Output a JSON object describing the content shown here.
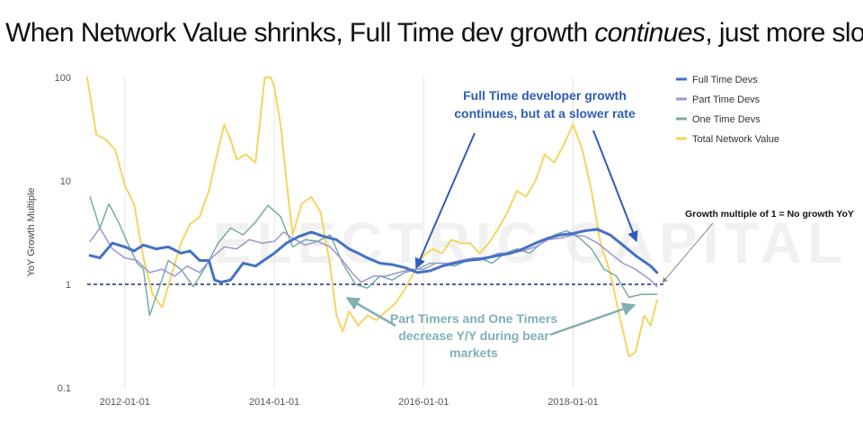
{
  "title": {
    "part1": "When Network Value shrinks, Full Time dev growth ",
    "emphasis": "continues",
    "part2": ", just more slowly"
  },
  "chart_data": {
    "type": "line",
    "ylabel": "YoY Growth Multiple",
    "yscale": "log",
    "ylim": [
      0.1,
      100
    ],
    "xlim": [
      "2011-07-01",
      "2019-03-01"
    ],
    "x_ticks": [
      "2012-01-01",
      "2014-01-01",
      "2016-01-01",
      "2018-01-01"
    ],
    "y_ticks": [
      {
        "value": 0.1,
        "label": "0.1"
      },
      {
        "value": 1,
        "label": "1"
      },
      {
        "value": 10,
        "label": "10"
      },
      {
        "value": 100,
        "label": "100"
      }
    ],
    "grid": "vertical",
    "legend": "top-right",
    "reference_line": {
      "value": 1,
      "style": "dashed",
      "color": "#1f2a80"
    },
    "series": [
      {
        "name": "Full Time Devs",
        "color": "#4472c4",
        "width": 3,
        "points": [
          [
            "2011-07-15",
            1.9
          ],
          [
            "2011-09-01",
            1.8
          ],
          [
            "2011-11-01",
            2.5
          ],
          [
            "2012-01-01",
            2.3
          ],
          [
            "2012-02-15",
            2.1
          ],
          [
            "2012-04-01",
            2.4
          ],
          [
            "2012-06-01",
            2.2
          ],
          [
            "2012-08-01",
            2.3
          ],
          [
            "2012-10-01",
            2.0
          ],
          [
            "2012-11-15",
            2.1
          ],
          [
            "2013-01-01",
            1.7
          ],
          [
            "2013-02-15",
            1.7
          ],
          [
            "2013-03-15",
            1.1
          ],
          [
            "2013-04-15",
            1.05
          ],
          [
            "2013-06-01",
            1.1
          ],
          [
            "2013-08-01",
            1.6
          ],
          [
            "2013-10-01",
            1.5
          ],
          [
            "2014-01-01",
            2.0
          ],
          [
            "2014-03-01",
            2.5
          ],
          [
            "2014-05-01",
            2.9
          ],
          [
            "2014-07-01",
            3.2
          ],
          [
            "2014-09-01",
            2.9
          ],
          [
            "2014-11-01",
            2.7
          ],
          [
            "2015-01-01",
            2.2
          ],
          [
            "2015-02-15",
            2.0
          ],
          [
            "2015-04-01",
            1.8
          ],
          [
            "2015-06-01",
            1.6
          ],
          [
            "2015-08-01",
            1.55
          ],
          [
            "2015-10-01",
            1.45
          ],
          [
            "2015-12-01",
            1.3
          ],
          [
            "2016-02-01",
            1.35
          ],
          [
            "2016-04-01",
            1.5
          ],
          [
            "2016-06-01",
            1.6
          ],
          [
            "2016-08-01",
            1.7
          ],
          [
            "2016-10-01",
            1.75
          ],
          [
            "2017-01-01",
            1.9
          ],
          [
            "2017-03-01",
            2.0
          ],
          [
            "2017-05-01",
            2.2
          ],
          [
            "2017-07-01",
            2.5
          ],
          [
            "2017-09-01",
            2.8
          ],
          [
            "2017-11-01",
            3.0
          ],
          [
            "2018-01-01",
            3.1
          ],
          [
            "2018-03-01",
            3.3
          ],
          [
            "2018-05-01",
            3.4
          ],
          [
            "2018-07-01",
            3.0
          ],
          [
            "2018-09-01",
            2.4
          ],
          [
            "2018-11-01",
            1.9
          ],
          [
            "2019-01-15",
            1.5
          ],
          [
            "2019-02-15",
            1.3
          ]
        ]
      },
      {
        "name": "Part Time Devs",
        "color": "#9e95cf",
        "width": 1.5,
        "points": [
          [
            "2011-07-15",
            2.6
          ],
          [
            "2011-09-01",
            3.5
          ],
          [
            "2011-11-01",
            2.2
          ],
          [
            "2012-01-01",
            1.8
          ],
          [
            "2012-03-01",
            1.7
          ],
          [
            "2012-05-01",
            1.3
          ],
          [
            "2012-07-01",
            1.4
          ],
          [
            "2012-09-01",
            1.2
          ],
          [
            "2012-11-01",
            1.5
          ],
          [
            "2013-01-01",
            1.3
          ],
          [
            "2013-03-01",
            1.8
          ],
          [
            "2013-05-01",
            2.3
          ],
          [
            "2013-07-01",
            2.2
          ],
          [
            "2013-09-01",
            2.7
          ],
          [
            "2013-11-01",
            2.5
          ],
          [
            "2014-01-01",
            2.6
          ],
          [
            "2014-02-15",
            3.2
          ],
          [
            "2014-04-01",
            2.8
          ],
          [
            "2014-06-01",
            2.4
          ],
          [
            "2014-08-01",
            2.6
          ],
          [
            "2014-10-01",
            2.3
          ],
          [
            "2014-12-01",
            1.7
          ],
          [
            "2015-01-15",
            1.3
          ],
          [
            "2015-03-01",
            1.05
          ],
          [
            "2015-05-01",
            1.2
          ],
          [
            "2015-07-01",
            1.2
          ],
          [
            "2015-09-01",
            1.3
          ],
          [
            "2015-11-01",
            1.4
          ],
          [
            "2016-01-01",
            1.4
          ],
          [
            "2016-03-01",
            1.6
          ],
          [
            "2016-05-01",
            1.6
          ],
          [
            "2016-07-01",
            1.7
          ],
          [
            "2016-09-01",
            1.8
          ],
          [
            "2016-11-01",
            1.8
          ],
          [
            "2017-01-01",
            2.0
          ],
          [
            "2017-03-01",
            2.0
          ],
          [
            "2017-05-01",
            2.1
          ],
          [
            "2017-07-01",
            2.3
          ],
          [
            "2017-09-01",
            2.7
          ],
          [
            "2017-11-01",
            2.8
          ],
          [
            "2018-01-01",
            3.0
          ],
          [
            "2018-03-01",
            2.9
          ],
          [
            "2018-05-01",
            2.5
          ],
          [
            "2018-07-01",
            2.0
          ],
          [
            "2018-09-01",
            1.6
          ],
          [
            "2018-11-01",
            1.4
          ],
          [
            "2019-01-15",
            1.1
          ],
          [
            "2019-02-15",
            0.95
          ]
        ]
      },
      {
        "name": "One Time Devs",
        "color": "#76aba5",
        "width": 1.5,
        "points": [
          [
            "2011-07-15",
            7.0
          ],
          [
            "2011-09-01",
            3.5
          ],
          [
            "2011-10-15",
            6.0
          ],
          [
            "2011-12-01",
            4.0
          ],
          [
            "2012-01-15",
            2.5
          ],
          [
            "2012-03-01",
            1.6
          ],
          [
            "2012-04-01",
            1.4
          ],
          [
            "2012-05-01",
            0.5
          ],
          [
            "2012-06-15",
            0.9
          ],
          [
            "2012-08-01",
            1.7
          ],
          [
            "2012-10-01",
            1.4
          ],
          [
            "2012-12-01",
            0.95
          ],
          [
            "2013-02-01",
            1.5
          ],
          [
            "2013-04-01",
            2.5
          ],
          [
            "2013-06-01",
            3.5
          ],
          [
            "2013-08-01",
            3.0
          ],
          [
            "2013-10-01",
            4.0
          ],
          [
            "2013-12-01",
            5.8
          ],
          [
            "2014-02-01",
            4.5
          ],
          [
            "2014-04-01",
            2.3
          ],
          [
            "2014-06-01",
            2.7
          ],
          [
            "2014-08-01",
            2.6
          ],
          [
            "2014-10-01",
            3.0
          ],
          [
            "2014-12-01",
            1.6
          ],
          [
            "2015-02-01",
            1.0
          ],
          [
            "2015-04-01",
            0.92
          ],
          [
            "2015-06-01",
            1.2
          ],
          [
            "2015-08-01",
            1.1
          ],
          [
            "2015-10-01",
            1.3
          ],
          [
            "2015-12-01",
            1.4
          ],
          [
            "2016-02-01",
            1.6
          ],
          [
            "2016-04-01",
            1.6
          ],
          [
            "2016-06-01",
            1.5
          ],
          [
            "2016-08-01",
            1.7
          ],
          [
            "2016-10-01",
            1.8
          ],
          [
            "2016-12-01",
            1.6
          ],
          [
            "2017-02-01",
            2.0
          ],
          [
            "2017-04-01",
            2.2
          ],
          [
            "2017-06-01",
            2.0
          ],
          [
            "2017-08-01",
            2.5
          ],
          [
            "2017-10-01",
            3.0
          ],
          [
            "2017-12-01",
            3.3
          ],
          [
            "2018-02-01",
            2.8
          ],
          [
            "2018-04-01",
            2.2
          ],
          [
            "2018-06-01",
            1.4
          ],
          [
            "2018-08-01",
            1.2
          ],
          [
            "2018-10-01",
            0.75
          ],
          [
            "2018-12-01",
            0.8
          ],
          [
            "2019-02-15",
            0.8
          ]
        ]
      },
      {
        "name": "Total Network Value",
        "color": "#f4d55f",
        "width": 2,
        "points": [
          [
            "2011-07-01",
            100
          ],
          [
            "2011-08-15",
            28
          ],
          [
            "2011-10-01",
            25
          ],
          [
            "2011-11-15",
            20
          ],
          [
            "2012-01-01",
            9
          ],
          [
            "2012-02-15",
            6
          ],
          [
            "2012-04-01",
            1.8
          ],
          [
            "2012-05-15",
            0.8
          ],
          [
            "2012-07-01",
            0.6
          ],
          [
            "2012-08-15",
            1.2
          ],
          [
            "2012-10-01",
            2.5
          ],
          [
            "2012-11-15",
            3.8
          ],
          [
            "2013-01-01",
            4.5
          ],
          [
            "2013-02-15",
            8
          ],
          [
            "2013-04-01",
            20
          ],
          [
            "2013-05-01",
            35
          ],
          [
            "2013-06-01",
            25
          ],
          [
            "2013-07-01",
            16
          ],
          [
            "2013-08-15",
            18
          ],
          [
            "2013-10-01",
            15
          ],
          [
            "2013-11-15",
            100
          ],
          [
            "2013-12-15",
            100
          ],
          [
            "2014-01-01",
            80
          ],
          [
            "2014-02-01",
            35
          ],
          [
            "2014-03-01",
            10
          ],
          [
            "2014-04-01",
            3
          ],
          [
            "2014-05-15",
            6
          ],
          [
            "2014-07-01",
            7
          ],
          [
            "2014-08-15",
            5
          ],
          [
            "2014-10-01",
            1.5
          ],
          [
            "2014-11-01",
            0.5
          ],
          [
            "2014-12-01",
            0.35
          ],
          [
            "2015-01-01",
            0.55
          ],
          [
            "2015-02-15",
            0.4
          ],
          [
            "2015-04-01",
            0.5
          ],
          [
            "2015-05-15",
            0.45
          ],
          [
            "2015-07-01",
            0.55
          ],
          [
            "2015-08-15",
            0.65
          ],
          [
            "2015-10-01",
            0.9
          ],
          [
            "2015-11-15",
            1.3
          ],
          [
            "2016-01-01",
            1.9
          ],
          [
            "2016-02-15",
            2.2
          ],
          [
            "2016-04-01",
            2.0
          ],
          [
            "2016-05-15",
            2.7
          ],
          [
            "2016-07-01",
            2.5
          ],
          [
            "2016-08-15",
            2.5
          ],
          [
            "2016-10-01",
            2.0
          ],
          [
            "2016-11-15",
            2.5
          ],
          [
            "2017-01-01",
            3.5
          ],
          [
            "2017-02-15",
            5
          ],
          [
            "2017-04-01",
            8
          ],
          [
            "2017-05-15",
            7
          ],
          [
            "2017-07-01",
            10
          ],
          [
            "2017-08-15",
            18
          ],
          [
            "2017-10-01",
            15
          ],
          [
            "2017-11-15",
            22
          ],
          [
            "2018-01-01",
            35
          ],
          [
            "2018-02-15",
            20
          ],
          [
            "2018-04-01",
            8
          ],
          [
            "2018-05-15",
            2.5
          ],
          [
            "2018-07-01",
            1.3
          ],
          [
            "2018-08-15",
            0.5
          ],
          [
            "2018-10-01",
            0.2
          ],
          [
            "2018-11-01",
            0.22
          ],
          [
            "2018-12-15",
            0.5
          ],
          [
            "2019-01-15",
            0.4
          ],
          [
            "2019-02-15",
            0.7
          ]
        ]
      }
    ],
    "annotations": [
      {
        "id": "full-time",
        "lines": [
          "Full Time developer growth",
          "continues, but at a slower rate"
        ],
        "color": "#2f5cb8"
      },
      {
        "id": "part-one",
        "lines": [
          "Part Timers and One Timers",
          "decrease Y/Y during bear",
          "markets"
        ],
        "color": "#7fb0b3"
      },
      {
        "id": "growth",
        "lines": [
          "Growth multiple of 1 = No growth YoY"
        ],
        "color": "#111111"
      }
    ]
  },
  "watermark": "ELECTRIC CAPITAL"
}
